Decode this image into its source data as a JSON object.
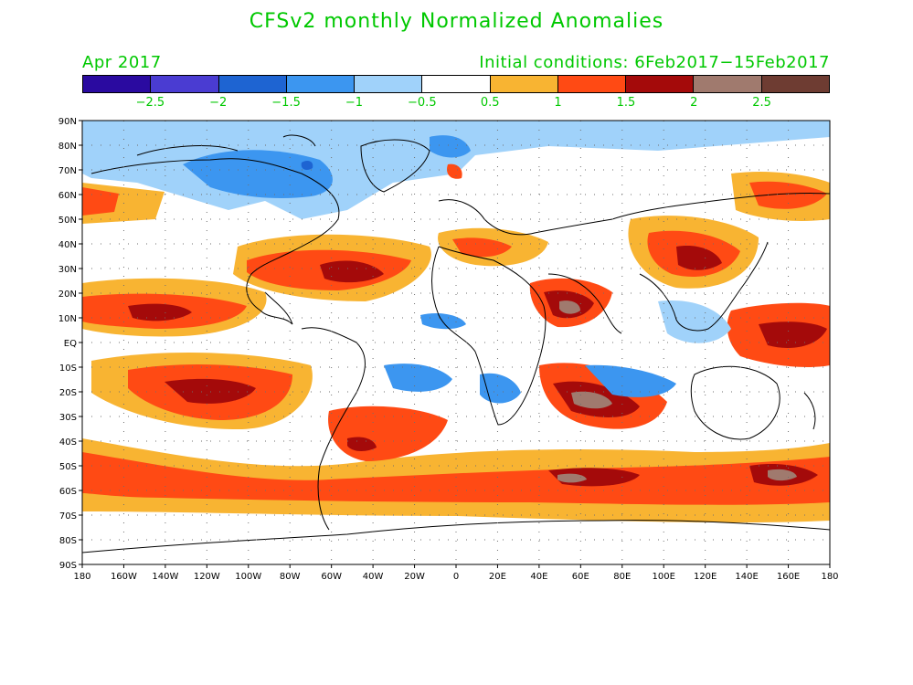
{
  "title": "CFSv2 monthly Normalized Anomalies",
  "month_label": "Apr 2017",
  "init_label": "Initial conditions: 6Feb2017−15Feb2017",
  "colorbar": {
    "colors": [
      "#2a0aa0",
      "#4a3cd2",
      "#1e64d2",
      "#3c96f0",
      "#a0d2fa",
      "#ffffff",
      "#f8b432",
      "#ff4a14",
      "#a40a0a",
      "#a07a6e",
      "#6e3c32"
    ],
    "labels": [
      "−2.5",
      "−2",
      "−1.5",
      "−1",
      "−0.5",
      "0.5",
      "1",
      "1.5",
      "2",
      "2.5"
    ]
  },
  "axes": {
    "lat_labels": [
      "90N",
      "80N",
      "70N",
      "60N",
      "50N",
      "40N",
      "30N",
      "20N",
      "10N",
      "EQ",
      "10S",
      "20S",
      "30S",
      "40S",
      "50S",
      "60S",
      "70S",
      "80S",
      "90S"
    ],
    "lon_labels": [
      "180",
      "160W",
      "140W",
      "120W",
      "100W",
      "80W",
      "60W",
      "40W",
      "20W",
      "0",
      "20E",
      "40E",
      "60E",
      "80E",
      "100E",
      "120E",
      "140E",
      "160E",
      "180"
    ]
  }
}
